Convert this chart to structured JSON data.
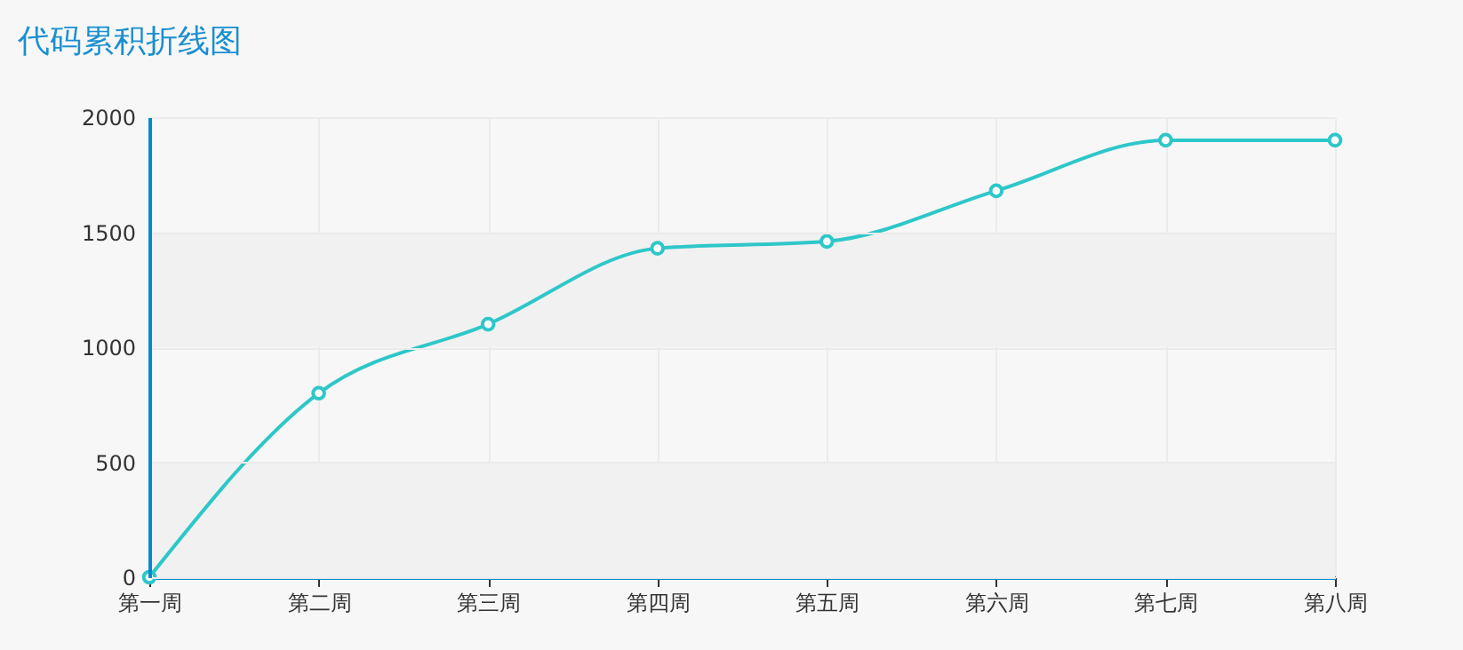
{
  "chart_data": {
    "type": "line",
    "title": "代码累积折线图",
    "categories": [
      "第一周",
      "第二周",
      "第三周",
      "第四周",
      "第五周",
      "第六周",
      "第七周",
      "第八周"
    ],
    "series": [
      {
        "color": "#2ec7c9",
        "values": [
          0,
          800,
          1100,
          1430,
          1460,
          1680,
          1900,
          1900
        ]
      }
    ],
    "ylim": [
      0,
      2000
    ],
    "yticks": [
      0,
      500,
      1000,
      1500,
      2000
    ],
    "grid": true,
    "marker": "circle",
    "line_style": "solid",
    "legend": false,
    "bands": [
      {
        "axis": "y",
        "from": 0,
        "to": 500,
        "color": "#f1f1f1"
      },
      {
        "axis": "y",
        "from": 1000,
        "to": 1500,
        "color": "#f1f1f1"
      }
    ]
  }
}
